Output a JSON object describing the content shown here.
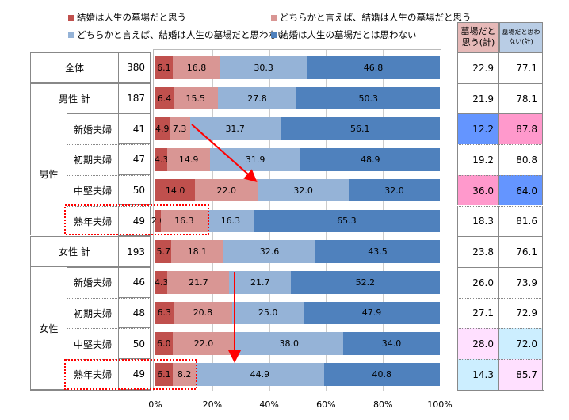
{
  "legend": [
    {
      "label": "結婚は人生の墓場だと思う",
      "color": "#c0504d"
    },
    {
      "label": "どちらかと言えば、結婚は人生の墓場だと思う",
      "color": "#d99694"
    },
    {
      "label": "どちらかと言えば、結婚は人生の墓場だと思わない",
      "color": "#95b3d7"
    },
    {
      "label": "結婚は人生の墓場だとは思わない",
      "color": "#4f81bd"
    }
  ],
  "right_headers": [
    "墓場だと思う(計)",
    "墓場だと思わない(計)"
  ],
  "groups": {
    "male": "男性",
    "female": "女性"
  },
  "chart_data": {
    "type": "bar",
    "orientation": "horizontal-stacked-100",
    "series_names": [
      "結婚は人生の墓場だと思う",
      "どちらかと言えば、結婚は人生の墓場だと思う",
      "どちらかと言えば、結婚は人生の墓場だと思わない",
      "結婚は人生の墓場だとは思わない"
    ],
    "x_ticks": [
      "0%",
      "20%",
      "40%",
      "60%",
      "80%",
      "100%"
    ],
    "xlim": [
      0,
      100
    ],
    "rows": [
      {
        "label": "全体",
        "n": "380",
        "values": [
          6.1,
          16.8,
          30.3,
          46.8
        ],
        "yes": "22.9",
        "no": "77.1",
        "hl": [
          null,
          null
        ],
        "type": "top"
      },
      {
        "label": "男性 計",
        "n": "187",
        "values": [
          6.4,
          15.5,
          27.8,
          50.3
        ],
        "yes": "21.9",
        "no": "78.1",
        "hl": [
          null,
          null
        ],
        "type": "top"
      },
      {
        "label": "新婚夫婦",
        "n": "41",
        "values": [
          4.9,
          7.3,
          31.7,
          56.1
        ],
        "yes": "12.2",
        "no": "87.8",
        "hl": [
          "#6495ff",
          "#ff99cc"
        ],
        "type": "sub"
      },
      {
        "label": "初期夫婦",
        "n": "47",
        "values": [
          4.3,
          14.9,
          31.9,
          48.9
        ],
        "yes": "19.2",
        "no": "80.8",
        "hl": [
          null,
          null
        ],
        "type": "sub"
      },
      {
        "label": "中堅夫婦",
        "n": "50",
        "values": [
          14.0,
          22.0,
          32.0,
          32.0
        ],
        "yes": "36.0",
        "no": "64.0",
        "hl": [
          "#ff99cc",
          "#6495ff"
        ],
        "type": "sub"
      },
      {
        "label": "熟年夫婦",
        "n": "49",
        "values": [
          2.0,
          16.3,
          16.3,
          65.3
        ],
        "yes": "18.3",
        "no": "81.6",
        "hl": [
          null,
          null
        ],
        "type": "sub"
      },
      {
        "label": "女性 計",
        "n": "193",
        "values": [
          5.7,
          18.1,
          32.6,
          43.5
        ],
        "yes": "23.8",
        "no": "76.1",
        "hl": [
          null,
          null
        ],
        "type": "top"
      },
      {
        "label": "新婚夫婦",
        "n": "46",
        "values": [
          4.3,
          21.7,
          21.7,
          52.2
        ],
        "yes": "26.0",
        "no": "73.9",
        "hl": [
          null,
          null
        ],
        "type": "sub"
      },
      {
        "label": "初期夫婦",
        "n": "48",
        "values": [
          6.3,
          20.8,
          25.0,
          47.9
        ],
        "yes": "27.1",
        "no": "72.9",
        "hl": [
          null,
          null
        ],
        "type": "sub"
      },
      {
        "label": "中堅夫婦",
        "n": "50",
        "values": [
          6.0,
          22.0,
          38.0,
          34.0
        ],
        "yes": "28.0",
        "no": "72.0",
        "hl": [
          "#ffe0ff",
          "#cceeff"
        ],
        "type": "sub"
      },
      {
        "label": "熟年夫婦",
        "n": "49",
        "values": [
          6.1,
          8.2,
          44.9,
          40.8
        ],
        "yes": "14.3",
        "no": "85.7",
        "hl": [
          "#cceeff",
          "#ffe0ff"
        ],
        "type": "sub"
      }
    ]
  }
}
